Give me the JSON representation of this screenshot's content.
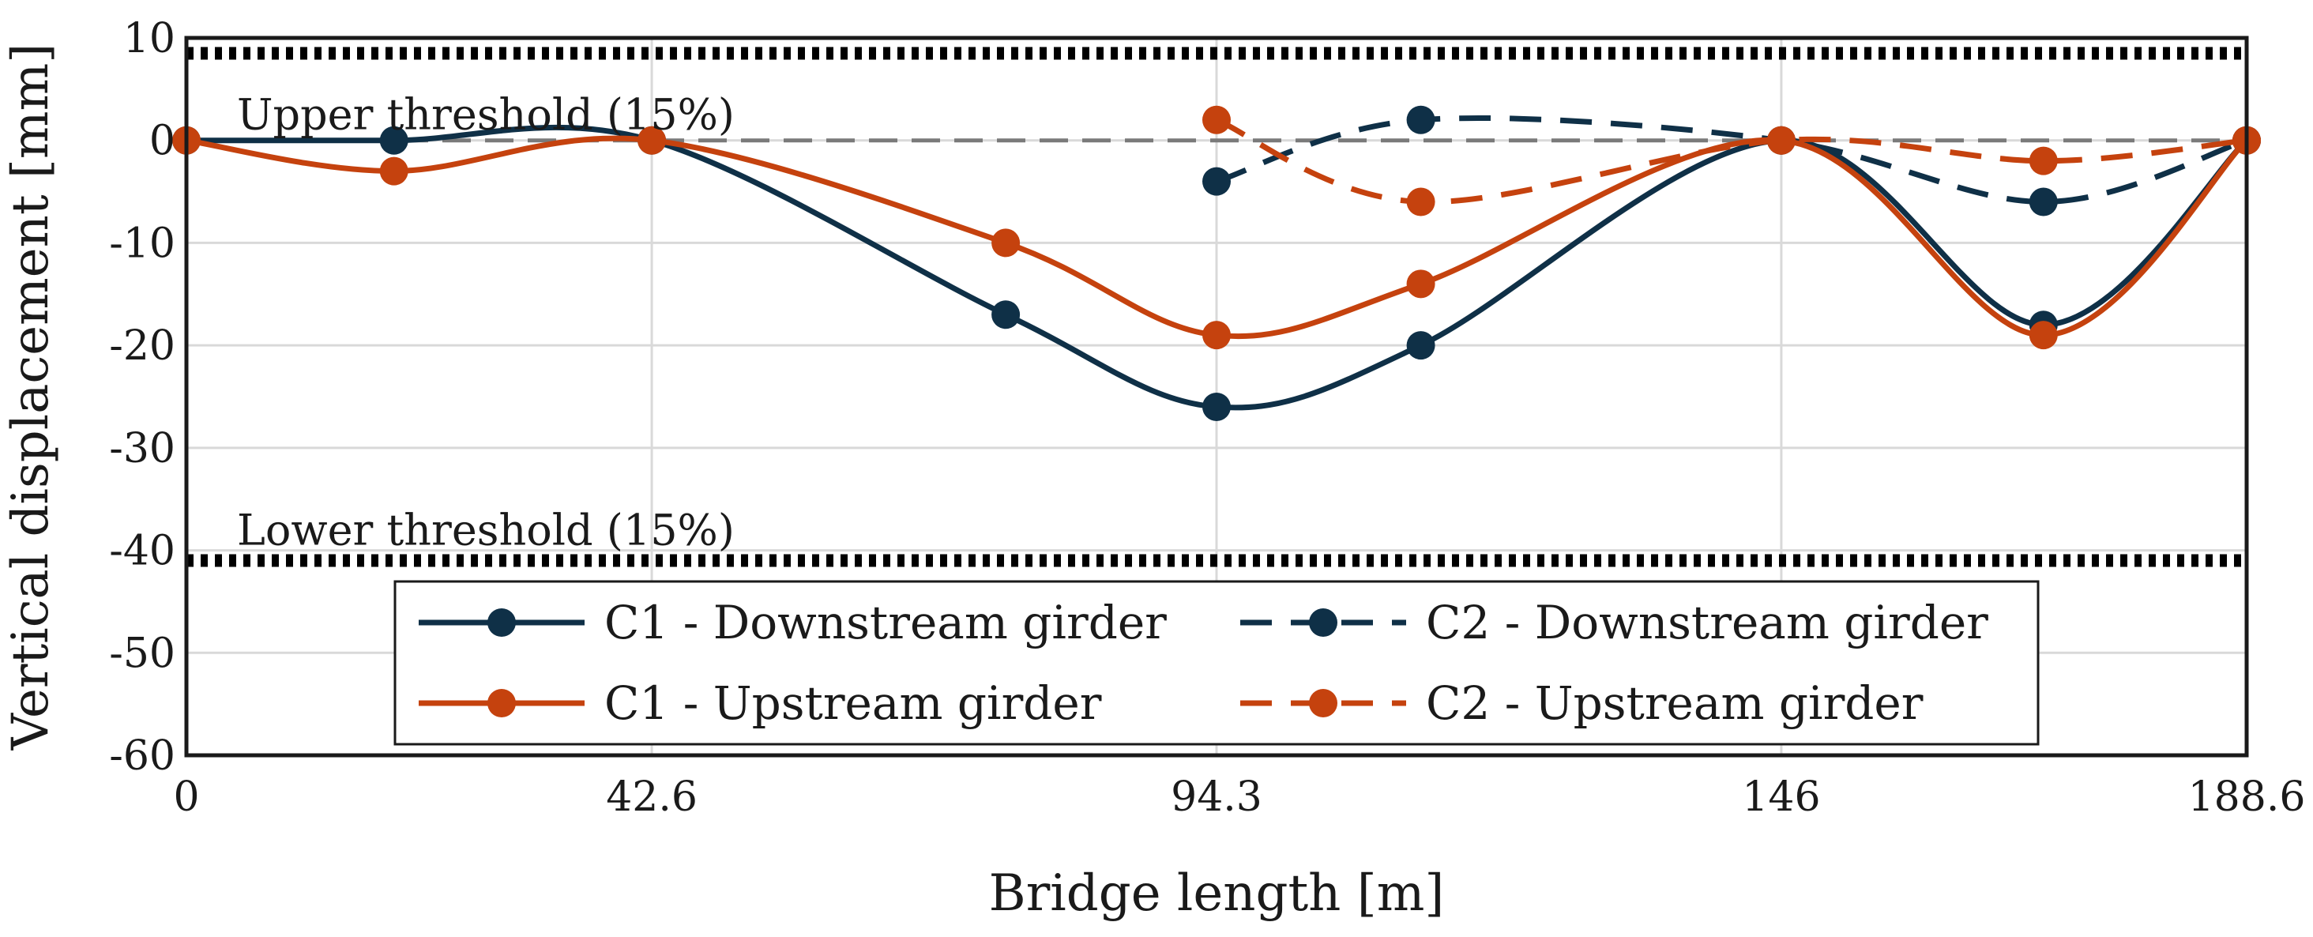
{
  "chart_data": {
    "type": "line",
    "xlabel": "Bridge length [m]",
    "ylabel": "Vertical displacement [mm]",
    "xlim": [
      0,
      188.6
    ],
    "ylim": [
      -60,
      10
    ],
    "xticks": [
      0,
      42.6,
      94.3,
      146,
      188.6
    ],
    "xtick_labels": [
      "0",
      "42.6",
      "94.3",
      "146",
      "188.6"
    ],
    "yticks": [
      10,
      0,
      -10,
      -20,
      -30,
      -40,
      -50,
      -60
    ],
    "ytick_labels": [
      "10",
      "0",
      "-10",
      "-20",
      "-30",
      "-40",
      "-50",
      "-60"
    ],
    "grid": true,
    "zero_line": 0,
    "thresholds": [
      {
        "name": "Upper threshold (15%)",
        "value": 8.5
      },
      {
        "name": "Lower threshold (15%)",
        "value": -41
      }
    ],
    "series": [
      {
        "name": "C1 - Downstream girder",
        "color": "#0f3047",
        "dash": "solid",
        "x": [
          0,
          19,
          42.6,
          75,
          94.3,
          113,
          146,
          170,
          188.6
        ],
        "y": [
          0,
          0,
          0,
          -17,
          -26,
          -20,
          0,
          -18,
          0
        ]
      },
      {
        "name": "C2 - Downstream girder",
        "color": "#0f3047",
        "dash": "dashed",
        "x": [
          94.3,
          113,
          146,
          170,
          188.6
        ],
        "y": [
          -4,
          2,
          0,
          -6,
          0
        ]
      },
      {
        "name": "C1 - Upstream girder",
        "color": "#c5420e",
        "dash": "solid",
        "x": [
          0,
          19,
          42.6,
          75,
          94.3,
          113,
          146,
          170,
          188.6
        ],
        "y": [
          0,
          -3,
          0,
          -10,
          -19,
          -14,
          0,
          -19,
          0
        ]
      },
      {
        "name": "C2 - Upstream girder",
        "color": "#c5420e",
        "dash": "dashed",
        "x": [
          94.3,
          113,
          146,
          170,
          188.6
        ],
        "y": [
          2,
          -6,
          0,
          -2,
          0
        ]
      }
    ],
    "legend_position": "bottom-center"
  }
}
